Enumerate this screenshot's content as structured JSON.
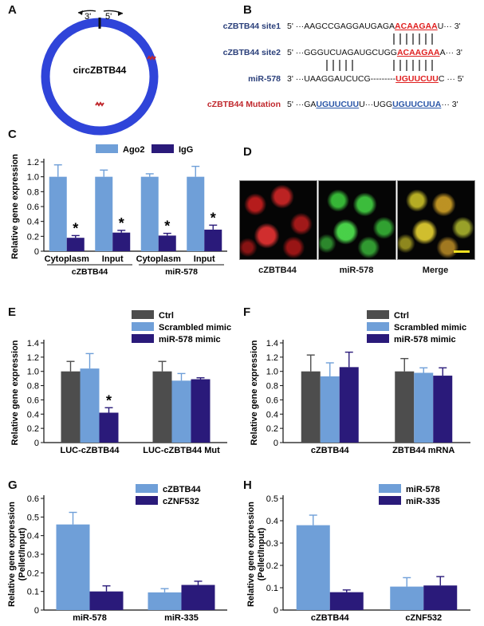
{
  "panels": {
    "A": {
      "letter": "A",
      "circle_label": "circZBTB44",
      "end3": "3'",
      "end5": "5'"
    },
    "B": {
      "letter": "B",
      "rows": [
        {
          "label": "cZBTB44 site1",
          "pre": "5' ···AAGCCGAGGAUGAGA",
          "hl": "ACAAGAA",
          "post": "U··· 3'"
        },
        {
          "label": "cZBTB44 site2",
          "pre": "5' ···GGGUCUAGAUGCUGG",
          "hl": "ACAAGAA",
          "post": "A··· 3'"
        },
        {
          "label": "miR-578",
          "pre": "3' ···UAAGGAUCUCG---------",
          "hl": "UGUUCUU",
          "post": "C ··· 5'"
        },
        {
          "label": "cZBTB44 Mutation",
          "pre": "5' ···GA",
          "hl": "UGUUCUU",
          "mid": "U···UGG",
          "hl2": "UGUUCUUA",
          "post": "··· 3'"
        }
      ]
    },
    "C": {
      "letter": "C"
    },
    "D": {
      "letter": "D",
      "labels": [
        "cZBTB44",
        "miR-578",
        "Merge"
      ]
    },
    "E": {
      "letter": "E"
    },
    "F": {
      "letter": "F"
    },
    "G": {
      "letter": "G"
    },
    "H": {
      "letter": "H"
    }
  },
  "chart_data": [
    {
      "id": "C",
      "type": "bar",
      "ylabel": "Relative gene expression",
      "ylim": [
        0,
        1.2
      ],
      "yticks": [
        "0",
        "0.2",
        "0.4",
        "0.6",
        "0.8",
        "1.0",
        "1.2"
      ],
      "categories": [
        "Cytoplasm",
        "Input",
        "Cytoplasm",
        "Input"
      ],
      "groups": [
        {
          "label": "cZBTB44",
          "span": [
            0,
            1
          ]
        },
        {
          "label": "miR-578",
          "span": [
            2,
            3
          ]
        }
      ],
      "series": [
        {
          "name": "Ago2",
          "color": "#6f9fd8",
          "values": [
            1.0,
            1.0,
            1.0,
            1.0
          ],
          "errors": [
            0.16,
            0.09,
            0.04,
            0.14
          ]
        },
        {
          "name": "IgG",
          "color": "#2a1a7a",
          "values": [
            0.18,
            0.25,
            0.21,
            0.29
          ],
          "errors": [
            0.03,
            0.03,
            0.03,
            0.06
          ]
        }
      ],
      "stars": [
        {
          "series": 1,
          "index": 0,
          "text": "*"
        },
        {
          "series": 1,
          "index": 1,
          "text": "*"
        },
        {
          "series": 1,
          "index": 2,
          "text": "*"
        },
        {
          "series": 1,
          "index": 3,
          "text": "*"
        }
      ],
      "legend": "top"
    },
    {
      "id": "E",
      "type": "bar",
      "ylabel": "Relative gene expression",
      "ylim": [
        0,
        1.4
      ],
      "yticks": [
        "0",
        "0.2",
        "0.4",
        "0.6",
        "0.8",
        "1.0",
        "1.2",
        "1.4"
      ],
      "categories": [
        "LUC-cZBTB44",
        "LUC-cZBTB44 Mut"
      ],
      "series": [
        {
          "name": "Ctrl",
          "color": "#4d4d4d",
          "values": [
            1.0,
            1.0
          ],
          "errors": [
            0.14,
            0.14
          ]
        },
        {
          "name": "Scrambled mimic",
          "color": "#6f9fd8",
          "values": [
            1.04,
            0.87
          ],
          "errors": [
            0.21,
            0.1
          ]
        },
        {
          "name": "miR-578 mimic",
          "color": "#2a1a7a",
          "values": [
            0.42,
            0.89
          ],
          "errors": [
            0.07,
            0.02
          ]
        }
      ],
      "stars": [
        {
          "series": 2,
          "index": 0,
          "text": "*"
        }
      ],
      "legend": "top-right"
    },
    {
      "id": "F",
      "type": "bar",
      "ylabel": "Relative gene expression",
      "ylim": [
        0,
        1.4
      ],
      "yticks": [
        "0",
        "0.2",
        "0.4",
        "0.6",
        "0.8",
        "1.0",
        "1.2",
        "1.4"
      ],
      "categories": [
        "cZBTB44",
        "ZBTB44 mRNA"
      ],
      "series": [
        {
          "name": "Ctrl",
          "color": "#4d4d4d",
          "values": [
            1.0,
            1.0
          ],
          "errors": [
            0.23,
            0.18
          ]
        },
        {
          "name": "Scrambled mimic",
          "color": "#6f9fd8",
          "values": [
            0.93,
            0.98
          ],
          "errors": [
            0.19,
            0.07
          ]
        },
        {
          "name": "miR-578 mimic",
          "color": "#2a1a7a",
          "values": [
            1.06,
            0.94
          ],
          "errors": [
            0.21,
            0.11
          ]
        }
      ],
      "stars": [],
      "legend": "top-right"
    },
    {
      "id": "G",
      "type": "bar",
      "ylabel": "Relative gene expression (Pellet/Input)",
      "ylim": [
        0,
        0.6
      ],
      "yticks": [
        "0",
        "0.1",
        "0.2",
        "0.3",
        "0.4",
        "0.5",
        "0.6"
      ],
      "categories": [
        "miR-578",
        "miR-335"
      ],
      "series": [
        {
          "name": "cZBTB44",
          "color": "#6f9fd8",
          "values": [
            0.46,
            0.095
          ],
          "errors": [
            0.065,
            0.02
          ]
        },
        {
          "name": "cZNF532",
          "color": "#2a1a7a",
          "values": [
            0.1,
            0.135
          ],
          "errors": [
            0.03,
            0.02
          ]
        }
      ],
      "stars": [],
      "legend": "top-right"
    },
    {
      "id": "H",
      "type": "bar",
      "ylabel": "Relative gene expression (Pellet/Input)",
      "ylim": [
        0,
        0.5
      ],
      "yticks": [
        "0",
        "0.1",
        "0.2",
        "0.3",
        "0.4",
        "0.5"
      ],
      "categories": [
        "cZBTB44",
        "cZNF532"
      ],
      "series": [
        {
          "name": "miR-578",
          "color": "#6f9fd8",
          "values": [
            0.38,
            0.105
          ],
          "errors": [
            0.045,
            0.04
          ]
        },
        {
          "name": "miR-335",
          "color": "#2a1a7a",
          "values": [
            0.08,
            0.11
          ],
          "errors": [
            0.01,
            0.04
          ]
        }
      ],
      "stars": [],
      "legend": "top-right"
    }
  ]
}
